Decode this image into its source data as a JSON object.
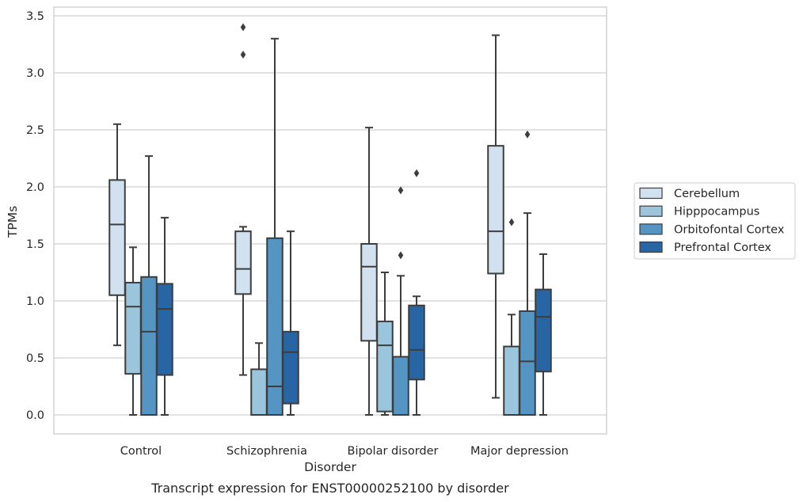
{
  "chart_data": {
    "type": "box",
    "xlabel": "Disorder",
    "ylabel": "TPMs",
    "caption": "Transcript expression for ENST00000252100 by disorder",
    "ylim": [
      -0.16,
      3.57
    ],
    "yticks": [
      "0.0",
      "0.5",
      "1.0",
      "1.5",
      "2.0",
      "2.5",
      "3.0",
      "3.5"
    ],
    "grid": "horizontal",
    "legend_position": "right",
    "categories": [
      "Control",
      "Schizophrenia",
      "Bipolar disorder",
      "Major depression"
    ],
    "series": [
      {
        "name": "Cerebellum",
        "color": "#d1e1f0",
        "boxes": [
          {
            "whisker_low": 0.61,
            "q1": 1.05,
            "median": 1.67,
            "q3": 2.06,
            "whisker_high": 2.55,
            "outliers": []
          },
          {
            "whisker_low": 0.35,
            "q1": 1.06,
            "median": 1.28,
            "q3": 1.61,
            "whisker_high": 1.65,
            "outliers": [
              3.16,
              3.4
            ]
          },
          {
            "whisker_low": 0.0,
            "q1": 0.65,
            "median": 1.3,
            "q3": 1.5,
            "whisker_high": 2.52,
            "outliers": []
          },
          {
            "whisker_low": 0.15,
            "q1": 1.24,
            "median": 1.61,
            "q3": 2.36,
            "whisker_high": 3.33,
            "outliers": []
          }
        ]
      },
      {
        "name": "Hipppocampus",
        "color": "#9ac5dd",
        "boxes": [
          {
            "whisker_low": 0.0,
            "q1": 0.36,
            "median": 0.95,
            "q3": 1.16,
            "whisker_high": 1.47,
            "outliers": []
          },
          {
            "whisker_low": 0.0,
            "q1": 0.0,
            "median": 0.0,
            "q3": 0.4,
            "whisker_high": 0.63,
            "outliers": []
          },
          {
            "whisker_low": 0.0,
            "q1": 0.03,
            "median": 0.61,
            "q3": 0.82,
            "whisker_high": 1.25,
            "outliers": []
          },
          {
            "whisker_low": 0.0,
            "q1": 0.0,
            "median": 0.0,
            "q3": 0.6,
            "whisker_high": 0.88,
            "outliers": [
              1.69
            ]
          }
        ]
      },
      {
        "name": "Orbitofontal Cortex",
        "color": "#5595c4",
        "boxes": [
          {
            "whisker_low": 0.0,
            "q1": 0.0,
            "median": 0.73,
            "q3": 1.21,
            "whisker_high": 2.27,
            "outliers": []
          },
          {
            "whisker_low": 0.0,
            "q1": 0.0,
            "median": 0.25,
            "q3": 1.55,
            "whisker_high": 3.3,
            "outliers": []
          },
          {
            "whisker_low": 0.0,
            "q1": 0.0,
            "median": 0.0,
            "q3": 0.51,
            "whisker_high": 1.22,
            "outliers": [
              1.4,
              1.97
            ]
          },
          {
            "whisker_low": 0.0,
            "q1": 0.0,
            "median": 0.47,
            "q3": 0.91,
            "whisker_high": 1.77,
            "outliers": [
              2.46
            ]
          }
        ]
      },
      {
        "name": "Prefrontal Cortex",
        "color": "#2865a4",
        "boxes": [
          {
            "whisker_low": 0.0,
            "q1": 0.35,
            "median": 0.93,
            "q3": 1.15,
            "whisker_high": 1.73,
            "outliers": []
          },
          {
            "whisker_low": 0.0,
            "q1": 0.1,
            "median": 0.55,
            "q3": 0.73,
            "whisker_high": 1.61,
            "outliers": []
          },
          {
            "whisker_low": 0.0,
            "q1": 0.31,
            "median": 0.57,
            "q3": 0.96,
            "whisker_high": 1.04,
            "outliers": [
              2.12
            ]
          },
          {
            "whisker_low": 0.0,
            "q1": 0.38,
            "median": 0.86,
            "q3": 1.1,
            "whisker_high": 1.41,
            "outliers": []
          }
        ]
      }
    ]
  }
}
